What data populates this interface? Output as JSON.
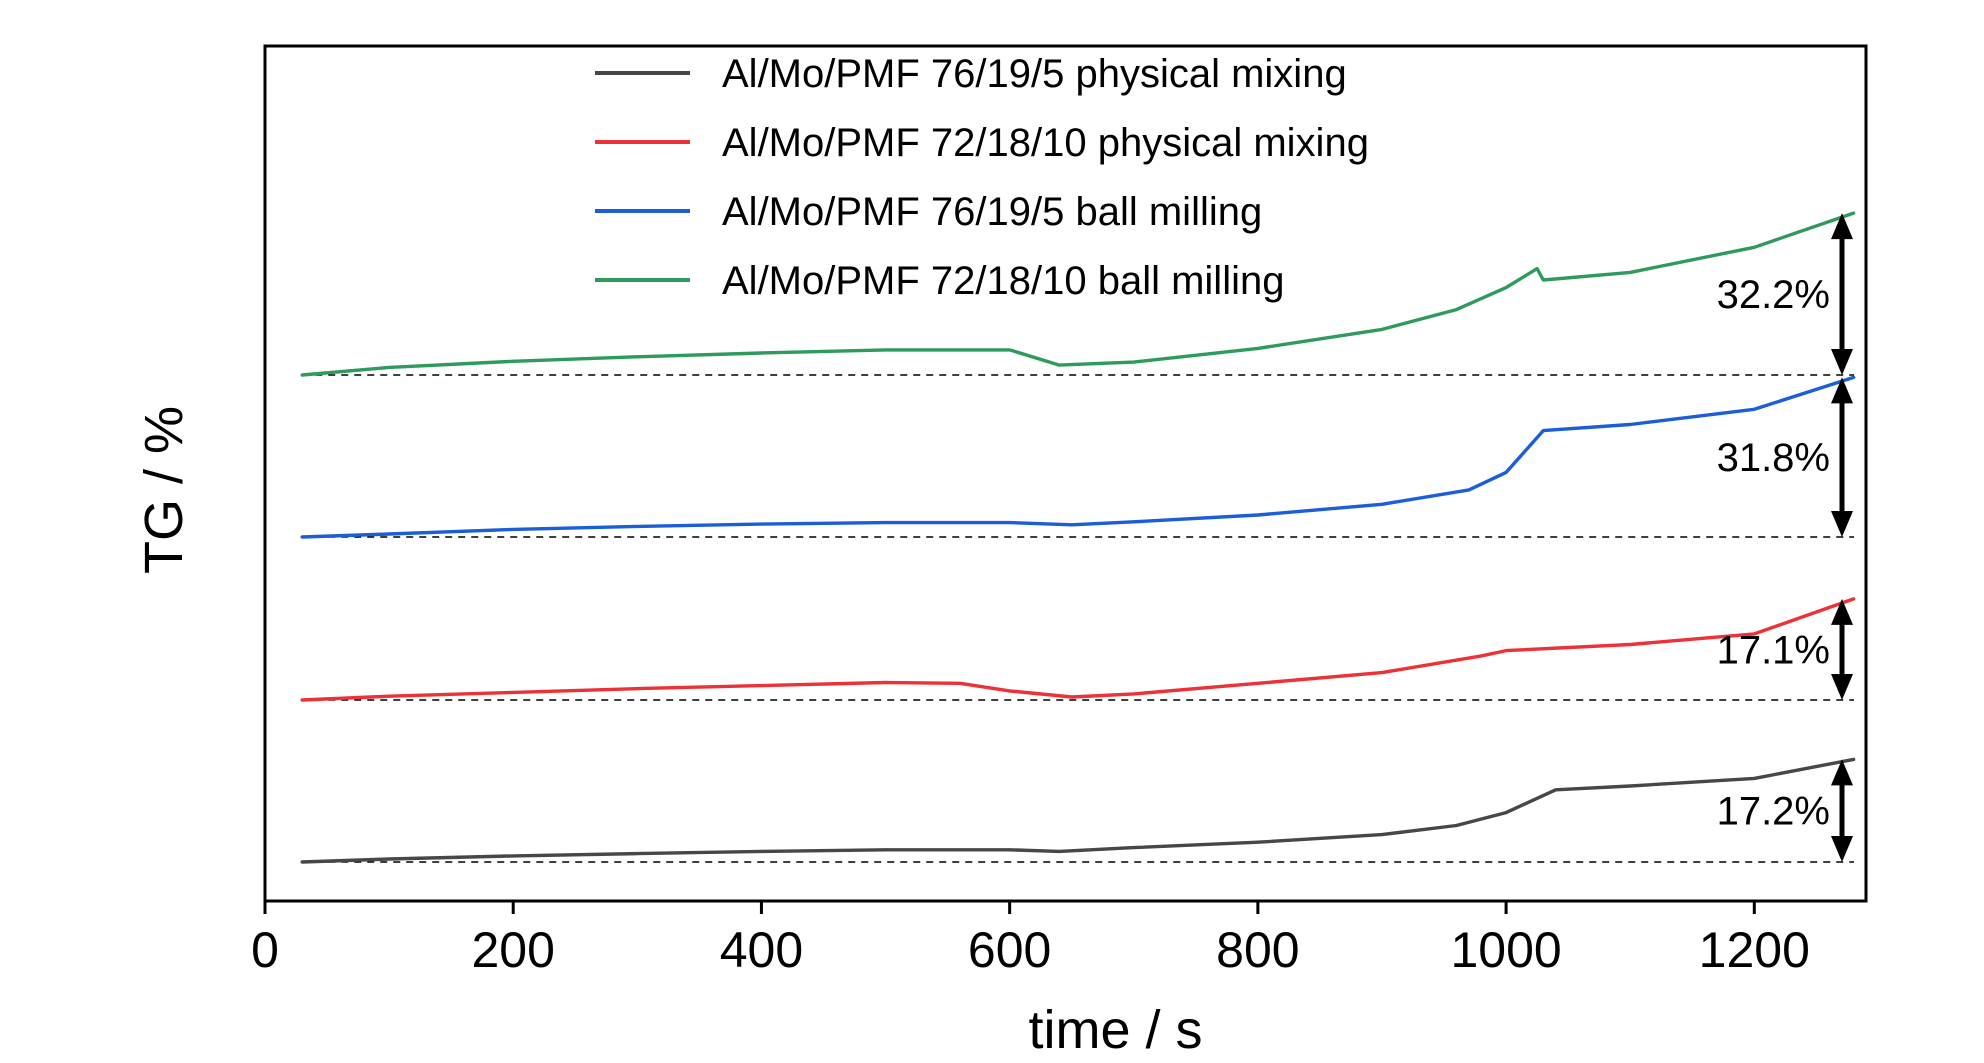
{
  "chart_data": {
    "type": "line",
    "xlabel": "time / s",
    "ylabel": "TG / %",
    "xlim": [
      0,
      1290
    ],
    "x_ticks": [
      "0",
      "200",
      "400",
      "600",
      "800",
      "1000",
      "1200"
    ],
    "y_tick_labels": false,
    "legend_position": "top-center",
    "series": [
      {
        "name": "Al/Mo/PMF 76/19/5 physical mixing",
        "color": "#474747",
        "mass_change_label": "17.2%",
        "x": [
          30,
          100,
          200,
          300,
          400,
          500,
          600,
          640,
          700,
          800,
          900,
          960,
          1000,
          1040,
          1100,
          1200,
          1280
        ],
        "rise": [
          0,
          0.4,
          0.8,
          1.1,
          1.4,
          1.6,
          1.6,
          1.4,
          1.9,
          2.6,
          3.6,
          4.8,
          6.5,
          9.5,
          10.0,
          11.0,
          13.5
        ]
      },
      {
        "name": "Al/Mo/PMF 72/18/10 physical mixing",
        "color": "#ed3237",
        "mass_change_label": "17.1%",
        "x": [
          30,
          100,
          200,
          300,
          400,
          500,
          560,
          600,
          650,
          700,
          800,
          900,
          980,
          1000,
          1100,
          1200,
          1280
        ],
        "rise": [
          0,
          0.5,
          1.0,
          1.5,
          1.9,
          2.3,
          2.2,
          1.2,
          0.4,
          0.8,
          2.2,
          3.6,
          5.8,
          6.5,
          7.3,
          8.7,
          13.3
        ]
      },
      {
        "name": "Al/Mo/PMF 76/19/5 ball milling",
        "color": "#1b5ed8",
        "mass_change_label": "31.8%",
        "x": [
          30,
          100,
          200,
          300,
          400,
          500,
          600,
          650,
          700,
          800,
          900,
          970,
          1000,
          1030,
          1100,
          1200,
          1280
        ],
        "rise": [
          0,
          0.4,
          1.0,
          1.4,
          1.7,
          1.9,
          1.9,
          1.6,
          2.0,
          2.9,
          4.3,
          6.2,
          8.5,
          14.0,
          14.8,
          16.8,
          21.0
        ]
      },
      {
        "name": "Al/Mo/PMF 72/18/10 ball milling",
        "color": "#2e9a5c",
        "mass_change_label": "32.2%",
        "x": [
          30,
          100,
          200,
          300,
          400,
          500,
          600,
          640,
          700,
          800,
          900,
          960,
          1000,
          1025,
          1030,
          1100,
          1200,
          1280
        ],
        "rise": [
          0,
          1.0,
          1.8,
          2.4,
          2.9,
          3.3,
          3.3,
          1.3,
          1.7,
          3.5,
          6.0,
          8.6,
          11.5,
          14.0,
          12.5,
          13.5,
          16.8,
          21.3
        ]
      }
    ]
  }
}
